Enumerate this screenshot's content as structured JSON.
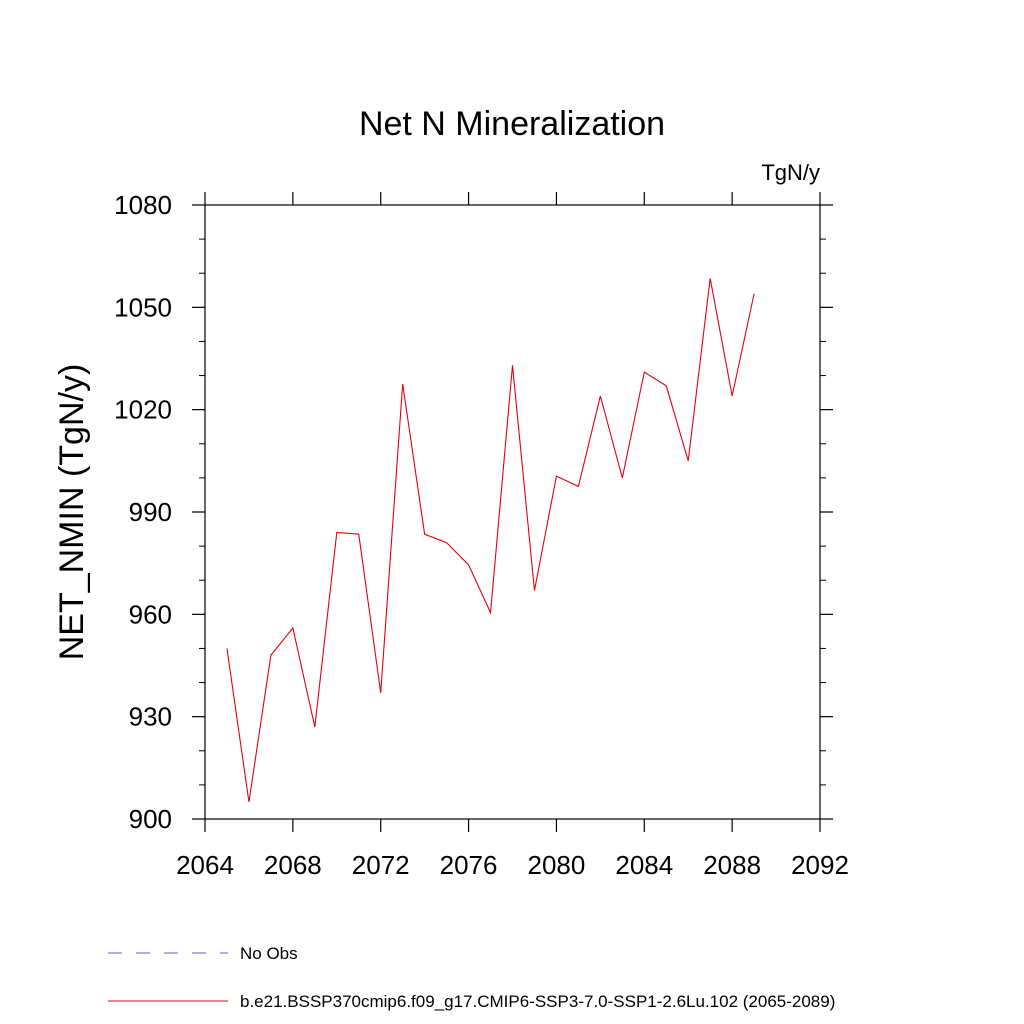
{
  "chart_data": {
    "type": "line",
    "title": "Net N Mineralization",
    "units_label": "TgN/y",
    "ylabel": "NET_NMIN  (TgN/y)",
    "xlabel": "",
    "xlim": [
      2064,
      2092
    ],
    "ylim": [
      900,
      1080
    ],
    "xticks": [
      2064,
      2068,
      2072,
      2076,
      2080,
      2084,
      2088,
      2092
    ],
    "yticks": [
      900,
      930,
      960,
      990,
      1020,
      1050,
      1080
    ],
    "series": [
      {
        "name": "b.e21.BSSP370cmip6.f09_g17.CMIP6-SSP3-7.0-SSP1-2.6Lu.102 (2065-2089)",
        "color": "#e8000b",
        "x": [
          2065,
          2066,
          2067,
          2068,
          2069,
          2070,
          2071,
          2072,
          2073,
          2074,
          2075,
          2076,
          2077,
          2078,
          2079,
          2080,
          2081,
          2082,
          2083,
          2084,
          2085,
          2086,
          2087,
          2088,
          2089
        ],
        "values": [
          950,
          905,
          948,
          956,
          927,
          984,
          983.5,
          937,
          1027.5,
          983.5,
          981,
          974.5,
          960.5,
          1033,
          967,
          1000.5,
          997.5,
          1024,
          1000,
          1031,
          1027,
          1005,
          1058.5,
          1024,
          1054
        ]
      }
    ],
    "legend": [
      {
        "label": "No Obs",
        "color": "#6a5acd",
        "style": "dashed"
      },
      {
        "label": "b.e21.BSSP370cmip6.f09_g17.CMIP6-SSP3-7.0-SSP1-2.6Lu.102 (2065-2089)",
        "color": "#e8000b",
        "style": "solid"
      }
    ]
  }
}
